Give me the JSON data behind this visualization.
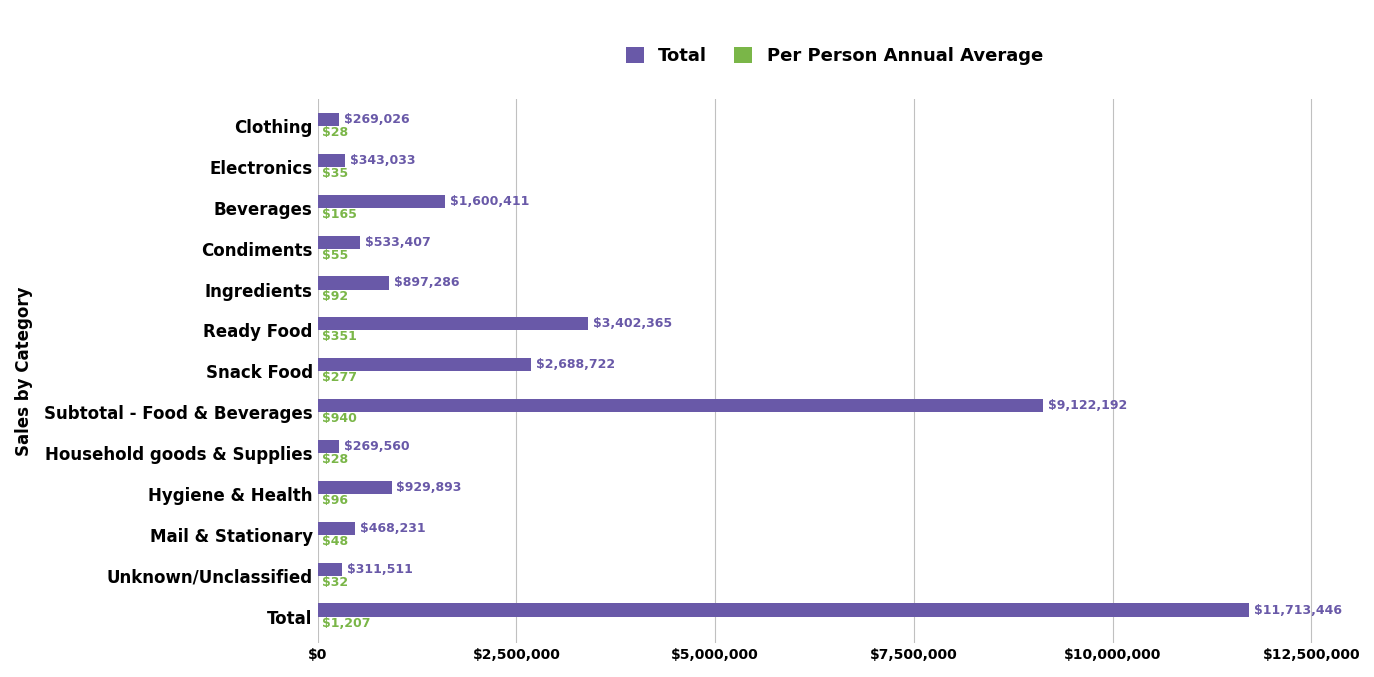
{
  "categories": [
    "Total",
    "Unknown/Unclassified",
    "Mail & Stationary",
    "Hygiene & Health",
    "Household goods & Supplies",
    "Subtotal - Food & Beverages",
    "Snack Food",
    "Ready Food",
    "Ingredients",
    "Condiments",
    "Beverages",
    "Electronics",
    "Clothing"
  ],
  "totals": [
    11713446,
    311511,
    468231,
    929893,
    269560,
    9122192,
    2688722,
    3402365,
    897286,
    533407,
    1600411,
    343033,
    269026
  ],
  "per_person": [
    1207,
    32,
    48,
    96,
    28,
    940,
    277,
    351,
    92,
    55,
    165,
    35,
    28
  ],
  "total_labels": [
    "$11,713,446",
    "$311,511",
    "$468,231",
    "$929,893",
    "$269,560",
    "$9,122,192",
    "$2,688,722",
    "$3,402,365",
    "$897,286",
    "$533,407",
    "$1,600,411",
    "$343,033",
    "$269,026"
  ],
  "per_person_labels": [
    "$1,207",
    "$32",
    "$48",
    "$96",
    "$28",
    "$940",
    "$277",
    "$351",
    "$92",
    "$55",
    "$165",
    "$35",
    "$28"
  ],
  "bar_height": 0.32,
  "total_color": "#6959a8",
  "per_person_color": "#7ab648",
  "background_color": "#ffffff",
  "grid_color": "#c0c0c0",
  "ylabel": "Sales by Category",
  "legend_labels": [
    "Total",
    "Per Person Annual Average"
  ],
  "xlim": [
    0,
    13000000
  ],
  "xtick_values": [
    0,
    2500000,
    5000000,
    7500000,
    10000000,
    12500000
  ],
  "xtick_labels": [
    "$0",
    "$2,500,000",
    "$5,000,000",
    "$7,500,000",
    "$10,000,000",
    "$12,500,000"
  ],
  "label_fontsize": 12,
  "tick_fontsize": 10,
  "annotation_fontsize": 9,
  "legend_fontsize": 13
}
